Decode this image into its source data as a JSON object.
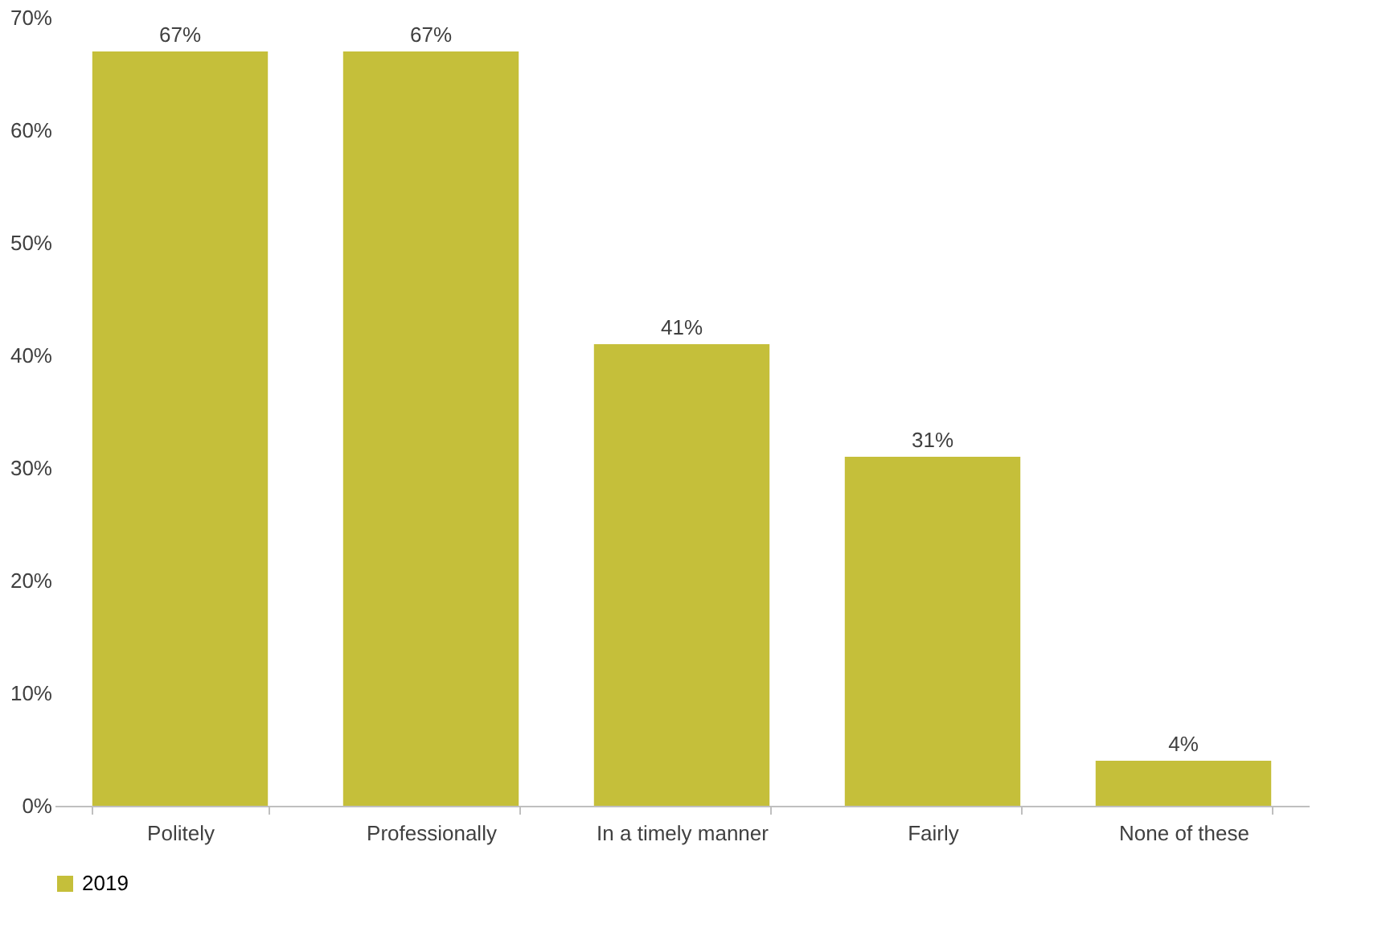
{
  "chart_data": {
    "type": "bar",
    "categories": [
      "Politely",
      "Professionally",
      "In a timely manner",
      "Fairly",
      "None of these"
    ],
    "series": [
      {
        "name": "2019",
        "color": "#c5bf3a",
        "values": [
          67,
          67,
          41,
          31,
          4
        ]
      }
    ],
    "value_labels": [
      "67%",
      "67%",
      "41%",
      "31%",
      "4%"
    ],
    "ylim": [
      0,
      70
    ],
    "yticks": [
      {
        "value": 0,
        "label": "0%"
      },
      {
        "value": 10,
        "label": "10%"
      },
      {
        "value": 20,
        "label": "20%"
      },
      {
        "value": 30,
        "label": "30%"
      },
      {
        "value": 40,
        "label": "40%"
      },
      {
        "value": 50,
        "label": "50%"
      },
      {
        "value": 60,
        "label": "60%"
      },
      {
        "value": 70,
        "label": "70%"
      }
    ],
    "grid": false,
    "legend": "bottom"
  }
}
